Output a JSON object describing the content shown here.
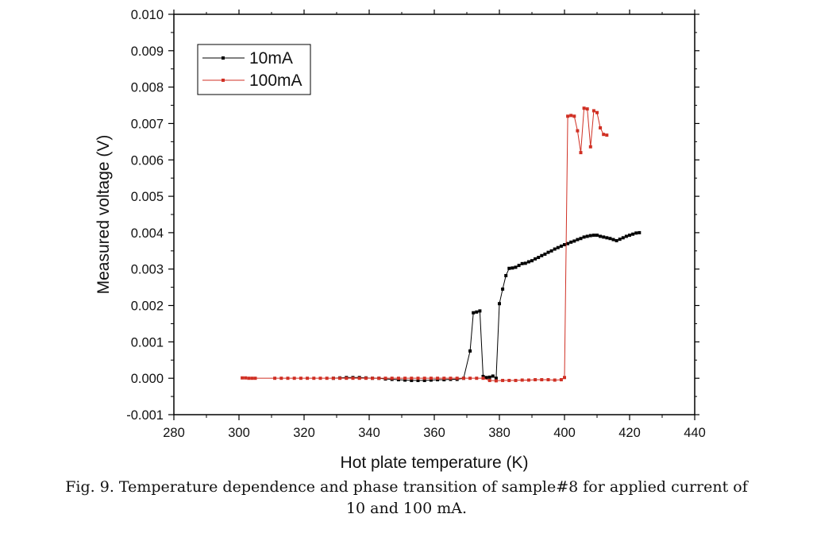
{
  "chart_data": {
    "type": "line",
    "title": "",
    "xlabel": "Hot plate temperature (K)",
    "ylabel": "Measured voltage (V)",
    "xlim": [
      280,
      440
    ],
    "ylim": [
      -0.001,
      0.01
    ],
    "xticks": [
      "280",
      "300",
      "320",
      "340",
      "360",
      "380",
      "400",
      "420",
      "440"
    ],
    "yticks": [
      "-0.001",
      "0.000",
      "0.001",
      "0.002",
      "0.003",
      "0.004",
      "0.005",
      "0.006",
      "0.007",
      "0.008",
      "0.009",
      "0.010"
    ],
    "legend_position": "top-left",
    "series": [
      {
        "name": "10mA",
        "color": "#000000",
        "x": [
          329,
          331,
          333,
          335,
          337,
          339,
          341,
          343,
          345,
          347,
          349,
          351,
          353,
          355,
          357,
          359,
          361,
          363,
          365,
          367,
          369,
          371,
          372,
          373,
          374,
          375,
          376,
          377,
          378,
          379,
          380,
          381,
          382,
          383,
          384,
          385,
          386,
          387,
          388,
          389,
          390,
          391,
          392,
          393,
          394,
          395,
          396,
          397,
          398,
          399,
          400,
          401,
          402,
          403,
          404,
          405,
          406,
          407,
          408,
          409,
          410,
          411,
          412,
          413,
          414,
          415,
          416,
          417,
          418,
          419,
          420,
          421,
          422,
          423
        ],
        "y": [
          0.0,
          1e-05,
          2e-05,
          2e-05,
          2e-05,
          1e-05,
          0.0,
          0.0,
          -2e-05,
          -3e-05,
          -4e-05,
          -5e-05,
          -6e-05,
          -6e-05,
          -6e-05,
          -5e-05,
          -4e-05,
          -4e-05,
          -3e-05,
          -3e-05,
          0.0,
          0.00075,
          0.0018,
          0.00182,
          0.00185,
          5e-05,
          2e-05,
          3e-05,
          6e-05,
          0.0,
          0.00205,
          0.00245,
          0.00282,
          0.00302,
          0.00303,
          0.00305,
          0.0031,
          0.00315,
          0.00316,
          0.0032,
          0.00323,
          0.00328,
          0.00332,
          0.00337,
          0.00341,
          0.00346,
          0.0035,
          0.00355,
          0.00359,
          0.00363,
          0.00367,
          0.0037,
          0.00374,
          0.00377,
          0.00381,
          0.00384,
          0.00388,
          0.0039,
          0.00392,
          0.00393,
          0.00393,
          0.0039,
          0.00388,
          0.00386,
          0.00384,
          0.00381,
          0.00378,
          0.00382,
          0.00386,
          0.0039,
          0.00393,
          0.00396,
          0.00399,
          0.004
        ]
      },
      {
        "name": "100mA",
        "color": "#d03024",
        "x": [
          301,
          302,
          303,
          304,
          305,
          311,
          313,
          315,
          317,
          319,
          321,
          323,
          325,
          327,
          329,
          331,
          333,
          335,
          337,
          339,
          341,
          343,
          345,
          347,
          349,
          351,
          353,
          355,
          357,
          359,
          361,
          363,
          365,
          367,
          369,
          371,
          373,
          375,
          377,
          379,
          381,
          383,
          385,
          387,
          389,
          391,
          393,
          395,
          397,
          399,
          400,
          401,
          402,
          403,
          404,
          405,
          406,
          407,
          408,
          409,
          410,
          411,
          412,
          413
        ],
        "y": [
          1e-05,
          1e-05,
          0.0,
          0.0,
          0.0,
          0.0,
          0.0,
          0.0,
          0.0,
          0.0,
          0.0,
          0.0,
          0.0,
          0.0,
          0.0,
          0.0,
          0.0,
          0.0,
          0.0,
          0.0,
          0.0,
          0.0,
          0.0,
          0.0,
          0.0,
          0.0,
          0.0,
          0.0,
          0.0,
          0.0,
          0.0,
          0.0,
          0.0,
          0.0,
          0.0,
          0.0,
          0.0,
          0.0,
          -6e-05,
          -7e-05,
          -6e-05,
          -6e-05,
          -6e-05,
          -5e-05,
          -5e-05,
          -4e-05,
          -4e-05,
          -4e-05,
          -5e-05,
          -4e-05,
          2e-05,
          0.0072,
          0.00722,
          0.0072,
          0.0068,
          0.0062,
          0.00742,
          0.0074,
          0.00636,
          0.00735,
          0.0073,
          0.00688,
          0.0067,
          0.00668
        ]
      }
    ]
  },
  "caption": {
    "line1": "Fig. 9. Temperature dependence and phase transition of sample#8 for applied current of",
    "line2": "10 and 100 mA."
  }
}
